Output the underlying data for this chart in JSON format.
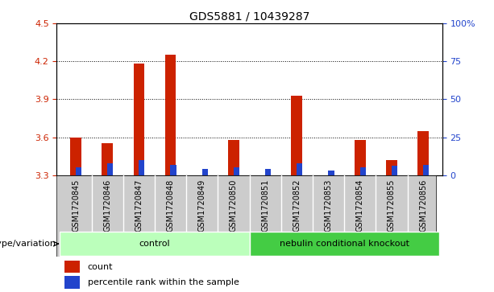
{
  "title": "GDS5881 / 10439287",
  "samples": [
    "GSM1720845",
    "GSM1720846",
    "GSM1720847",
    "GSM1720848",
    "GSM1720849",
    "GSM1720850",
    "GSM1720851",
    "GSM1720852",
    "GSM1720853",
    "GSM1720854",
    "GSM1720855",
    "GSM1720856"
  ],
  "count_values": [
    3.6,
    3.55,
    4.18,
    4.25,
    3.3,
    3.58,
    3.3,
    3.93,
    3.3,
    3.58,
    3.42,
    3.65
  ],
  "percentile_values": [
    5,
    8,
    10,
    7,
    4,
    5,
    4,
    8,
    3,
    5,
    6,
    7
  ],
  "ylim_left": [
    3.3,
    4.5
  ],
  "ylim_right": [
    0,
    100
  ],
  "right_ticks": [
    0,
    25,
    50,
    75,
    100
  ],
  "right_tick_labels": [
    "0",
    "25",
    "50",
    "75",
    "100%"
  ],
  "left_ticks": [
    3.3,
    3.6,
    3.9,
    4.2,
    4.5
  ],
  "count_color": "#cc2200",
  "percentile_color": "#2244cc",
  "groups": [
    {
      "label": "control",
      "start": 0,
      "end": 6,
      "color": "#bbffbb"
    },
    {
      "label": "nebulin conditional knockout",
      "start": 6,
      "end": 12,
      "color": "#44cc44"
    }
  ],
  "group_row_label": "genotype/variation",
  "legend_count_label": "count",
  "legend_percentile_label": "percentile rank within the sample",
  "bg_color": "#ffffff",
  "plot_bg": "#ffffff",
  "tick_label_color_left": "#cc2200",
  "tick_label_color_right": "#2244cc",
  "sample_bg": "#cccccc"
}
